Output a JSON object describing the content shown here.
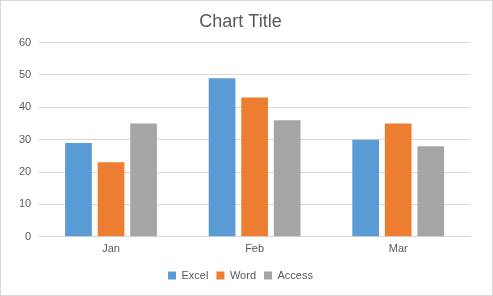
{
  "chart_data": {
    "type": "bar",
    "title": "Chart Title",
    "categories": [
      "Jan",
      "Feb",
      "Mar"
    ],
    "series": [
      {
        "name": "Excel",
        "color": "#5b9bd5",
        "values": [
          29,
          49,
          30
        ]
      },
      {
        "name": "Word",
        "color": "#ed7d31",
        "values": [
          23,
          43,
          35
        ]
      },
      {
        "name": "Access",
        "color": "#a5a5a5",
        "values": [
          35,
          36,
          28
        ]
      }
    ],
    "ylim": [
      0,
      60
    ],
    "yticks": [
      0,
      10,
      20,
      30,
      40,
      50,
      60
    ],
    "grid": true,
    "legend": "bottom"
  }
}
